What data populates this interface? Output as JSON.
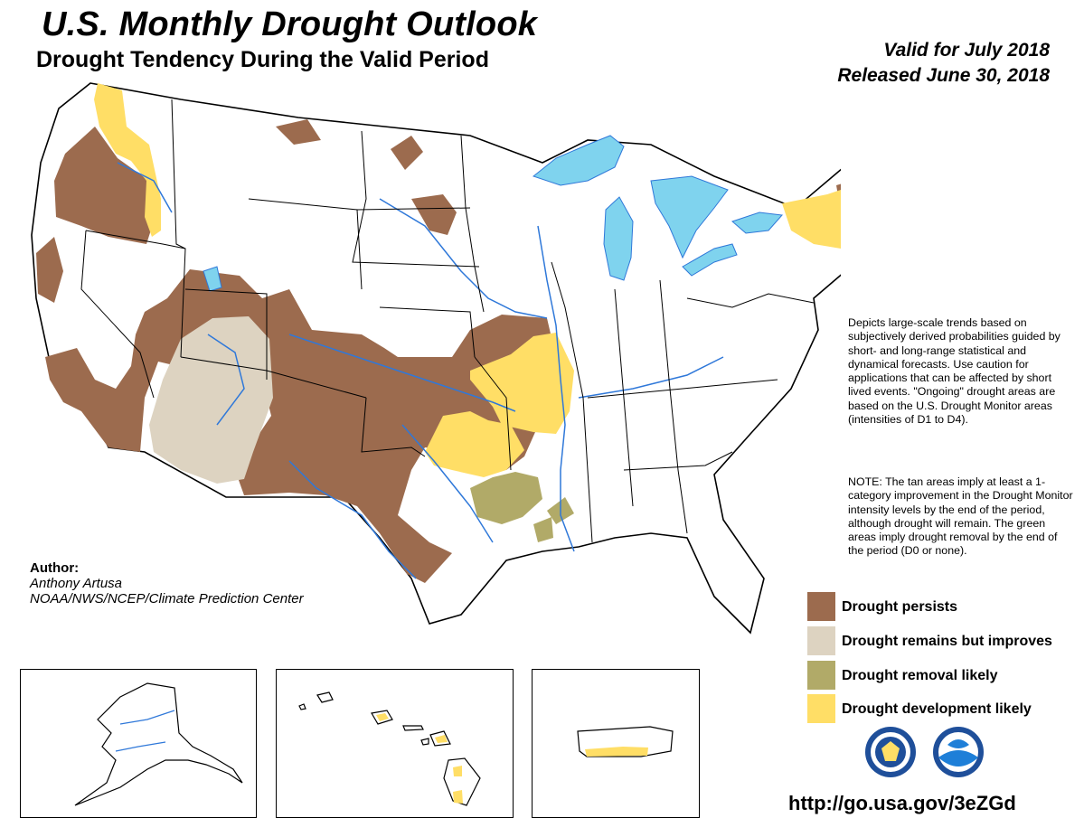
{
  "header": {
    "title": "U.S. Monthly Drought Outlook",
    "subtitle": "Drought Tendency During the Valid Period",
    "valid": "Valid for July 2018",
    "released": "Released June 30, 2018"
  },
  "description": "Depicts large-scale trends based on subjectively derived probabilities guided by short- and long-range statistical and dynamical forecasts. Use caution for applications that can be affected by short lived events. \"Ongoing\" drought areas are based on the U.S. Drought Monitor areas (intensities of D1 to D4).",
  "note": "NOTE: The tan areas imply at least a 1-category improvement in the Drought Monitor intensity levels by the end of the period, although drought will remain. The green areas imply drought removal by the end of the period (D0 or none).",
  "author": {
    "label": "Author:",
    "name": "Anthony Artusa",
    "org": "NOAA/NWS/NCEP/Climate Prediction Center"
  },
  "legend": [
    {
      "label": "Drought persists",
      "color": "#9c6b4e"
    },
    {
      "label": "Drought remains but improves",
      "color": "#ddd3c1"
    },
    {
      "label": "Drought removal likely",
      "color": "#b1aa68"
    },
    {
      "label": "Drought development likely",
      "color": "#ffde66"
    }
  ],
  "colors": {
    "water": "#7fd3ee",
    "rivers": "#2f78d9",
    "borders": "#000000"
  },
  "url": "http://go.usa.gov/3eZGd",
  "insets": [
    "alaska",
    "hawaii",
    "puerto-rico"
  ],
  "logos": [
    "doc-seal",
    "noaa-logo"
  ]
}
